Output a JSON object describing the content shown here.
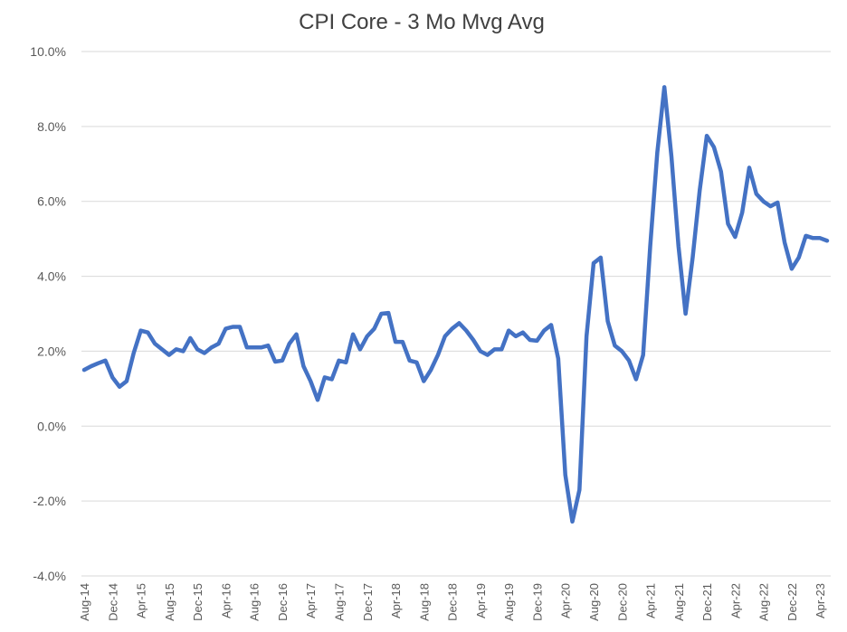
{
  "chart_data": {
    "type": "line",
    "title": "CPI Core - 3 Mo Mvg Avg",
    "xlabel": "",
    "ylabel": "",
    "ylim": [
      -4,
      10
    ],
    "y_ticks": [
      "10.0%",
      "8.0%",
      "6.0%",
      "4.0%",
      "2.0%",
      "0.0%",
      "-2.0%",
      "-4.0%"
    ],
    "x_tick_labels": [
      "Aug-14",
      "Dec-14",
      "Apr-15",
      "Aug-15",
      "Dec-15",
      "Apr-16",
      "Aug-16",
      "Dec-16",
      "Apr-17",
      "Aug-17",
      "Dec-17",
      "Apr-18",
      "Aug-18",
      "Dec-18",
      "Apr-19",
      "Aug-19",
      "Dec-19",
      "Apr-20",
      "Aug-20",
      "Dec-20",
      "Apr-21",
      "Aug-21",
      "Dec-21",
      "Apr-22",
      "Aug-22",
      "Dec-22",
      "Apr-23"
    ],
    "grid": true,
    "series": [
      {
        "name": "CPI Core - 3 Mo Mvg Avg",
        "color": "#4472c4",
        "start": "Aug-14",
        "frequency": "monthly",
        "values": [
          1.5,
          1.6,
          1.68,
          1.75,
          1.3,
          1.05,
          1.2,
          1.95,
          2.55,
          2.5,
          2.2,
          2.05,
          1.9,
          2.05,
          2.0,
          2.35,
          2.05,
          1.95,
          2.1,
          2.2,
          2.6,
          2.65,
          2.65,
          2.1,
          2.1,
          2.1,
          2.15,
          1.72,
          1.75,
          2.2,
          2.45,
          1.6,
          1.2,
          0.7,
          1.3,
          1.25,
          1.75,
          1.7,
          2.45,
          2.05,
          2.4,
          2.6,
          3.0,
          3.02,
          2.25,
          2.25,
          1.75,
          1.7,
          1.2,
          1.5,
          1.9,
          2.4,
          2.6,
          2.75,
          2.55,
          2.3,
          2.0,
          1.9,
          2.05,
          2.05,
          2.55,
          2.4,
          2.5,
          2.3,
          2.28,
          2.55,
          2.7,
          1.8,
          -1.3,
          -2.55,
          -1.7,
          2.4,
          4.35,
          4.5,
          2.8,
          2.15,
          2.0,
          1.75,
          1.25,
          1.9,
          4.8,
          7.3,
          9.05,
          7.2,
          4.8,
          3.0,
          4.5,
          6.3,
          7.75,
          7.45,
          6.8,
          5.4,
          5.05,
          5.7,
          6.9,
          6.2,
          6.0,
          5.87,
          5.97,
          4.9,
          4.2,
          4.5,
          5.08,
          5.02,
          5.02,
          4.95
        ]
      }
    ]
  }
}
